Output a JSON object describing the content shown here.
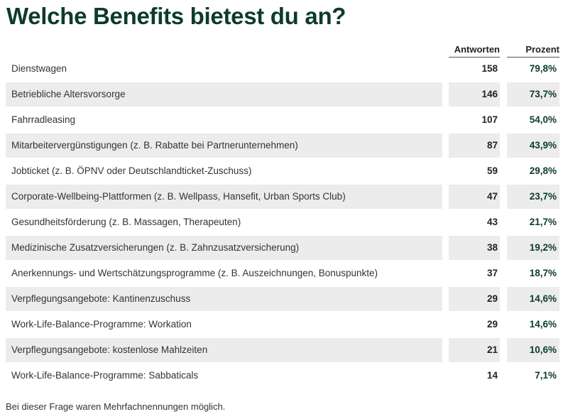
{
  "title": "Welche Benefits bietest du an?",
  "columns": {
    "answers": "Antworten",
    "percent": "Prozent"
  },
  "footnote": "Bei dieser Frage waren Mehrfachnennungen möglich.",
  "chart_data": {
    "type": "table",
    "title": "Welche Benefits bietest du an?",
    "columns": [
      "",
      "Antworten",
      "Prozent"
    ],
    "rows": [
      {
        "label": "Dienstwagen",
        "answers": "158",
        "percent": "79,8%"
      },
      {
        "label": "Betriebliche Altersvorsorge",
        "answers": "146",
        "percent": "73,7%"
      },
      {
        "label": "Fahrradleasing",
        "answers": "107",
        "percent": "54,0%"
      },
      {
        "label": "Mitarbeitervergünstigungen (z. B. Rabatte bei Partnerunternehmen)",
        "answers": "87",
        "percent": "43,9%"
      },
      {
        "label": "Jobticket (z. B. ÖPNV oder Deutschlandticket-Zuschuss)",
        "answers": "59",
        "percent": "29,8%"
      },
      {
        "label": "Corporate-Wellbeing-Plattformen (z. B. Wellpass, Hansefit, Urban Sports Club)",
        "answers": "47",
        "percent": "23,7%"
      },
      {
        "label": "Gesundheitsförderung (z. B. Massagen, Therapeuten)",
        "answers": "43",
        "percent": "21,7%"
      },
      {
        "label": "Medizinische Zusatzversicherungen (z. B. Zahnzusatzversicherung)",
        "answers": "38",
        "percent": "19,2%"
      },
      {
        "label": "Anerkennungs- und Wertschätzungsprogramme (z. B. Auszeichnungen, Bonuspunkte)",
        "answers": "37",
        "percent": "18,7%"
      },
      {
        "label": "Verpflegungsangebote: Kantinenzuschuss",
        "answers": "29",
        "percent": "14,6%"
      },
      {
        "label": "Work-Life-Balance-Programme: Workation",
        "answers": "29",
        "percent": "14,6%"
      },
      {
        "label": "Verpflegungsangebote: kostenlose Mahlzeiten",
        "answers": "21",
        "percent": "10,6%"
      },
      {
        "label": "Work-Life-Balance-Programme: Sabbaticals",
        "answers": "14",
        "percent": "7,1%"
      }
    ]
  }
}
